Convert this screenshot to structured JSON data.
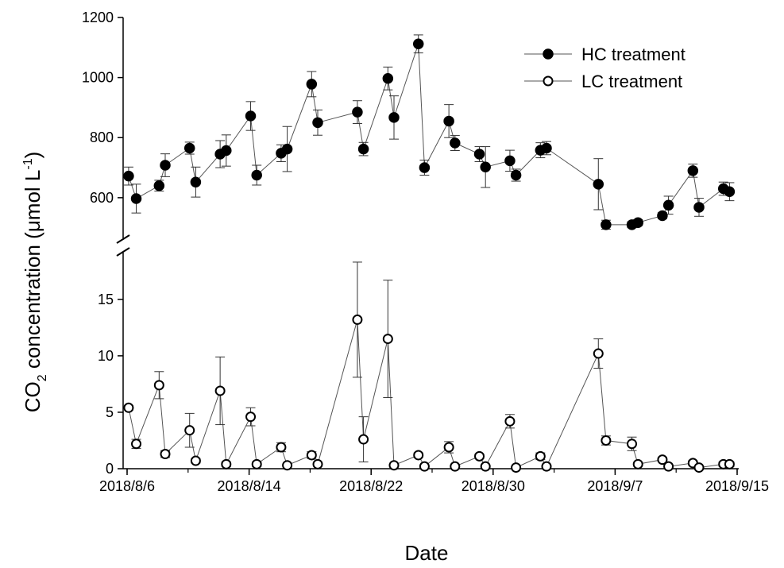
{
  "chart_data": {
    "type": "scatter",
    "xlabel": "Date",
    "ylabel_main": "CO",
    "ylabel_sub": "2",
    "ylabel_rest": " concentration (μmol L",
    "ylabel_sup": "-1",
    "ylabel_close": ")",
    "x_ticks": [
      {
        "label": "2018/8/6",
        "day": 6
      },
      {
        "label": "2018/8/14",
        "day": 14
      },
      {
        "label": "2018/8/22",
        "day": 22
      },
      {
        "label": "2018/8/30",
        "day": 30
      },
      {
        "label": "2018/9/7",
        "day": 38
      },
      {
        "label": "2018/9/15",
        "day": 46
      }
    ],
    "upper_panel": {
      "ylim": [
        470,
        1200
      ],
      "yticks": [
        "600",
        "800",
        "1000",
        "1200"
      ]
    },
    "lower_panel": {
      "ylim": [
        0,
        19
      ],
      "yticks": [
        "0",
        "5",
        "10",
        "15"
      ]
    },
    "series": [
      {
        "name": "HC treatment",
        "marker": "filled",
        "points": [
          {
            "x": 6.1,
            "y": 672,
            "err": 30
          },
          {
            "x": 6.6,
            "y": 597,
            "err": 48
          },
          {
            "x": 8.1,
            "y": 640,
            "err": 18
          },
          {
            "x": 8.5,
            "y": 708,
            "err": 38
          },
          {
            "x": 10.1,
            "y": 765,
            "err": 20
          },
          {
            "x": 10.5,
            "y": 652,
            "err": 50
          },
          {
            "x": 12.1,
            "y": 745,
            "err": 45
          },
          {
            "x": 12.5,
            "y": 757,
            "err": 52
          },
          {
            "x": 14.1,
            "y": 872,
            "err": 48
          },
          {
            "x": 14.5,
            "y": 675,
            "err": 33
          },
          {
            "x": 16.1,
            "y": 748,
            "err": 28
          },
          {
            "x": 16.5,
            "y": 762,
            "err": 75
          },
          {
            "x": 18.1,
            "y": 978,
            "err": 42
          },
          {
            "x": 18.5,
            "y": 850,
            "err": 42
          },
          {
            "x": 21.1,
            "y": 885,
            "err": 38
          },
          {
            "x": 21.5,
            "y": 762,
            "err": 22
          },
          {
            "x": 23.1,
            "y": 997,
            "err": 38
          },
          {
            "x": 23.5,
            "y": 867,
            "err": 72
          },
          {
            "x": 25.1,
            "y": 1112,
            "err": 30
          },
          {
            "x": 25.5,
            "y": 700,
            "err": 25
          },
          {
            "x": 27.1,
            "y": 855,
            "err": 55
          },
          {
            "x": 27.5,
            "y": 782,
            "err": 25
          },
          {
            "x": 29.1,
            "y": 745,
            "err": 25
          },
          {
            "x": 29.5,
            "y": 702,
            "err": 68
          },
          {
            "x": 31.1,
            "y": 723,
            "err": 35
          },
          {
            "x": 31.5,
            "y": 675,
            "err": 20
          },
          {
            "x": 33.1,
            "y": 758,
            "err": 25
          },
          {
            "x": 33.5,
            "y": 765,
            "err": 22
          },
          {
            "x": 36.9,
            "y": 645,
            "err": 85
          },
          {
            "x": 37.4,
            "y": 510,
            "err": 15
          },
          {
            "x": 39.1,
            "y": 510,
            "err": 10
          },
          {
            "x": 39.5,
            "y": 517,
            "err": 10
          },
          {
            "x": 41.1,
            "y": 540,
            "err": 10
          },
          {
            "x": 41.5,
            "y": 575,
            "err": 30
          },
          {
            "x": 43.1,
            "y": 690,
            "err": 22
          },
          {
            "x": 43.5,
            "y": 568,
            "err": 30
          },
          {
            "x": 45.1,
            "y": 630,
            "err": 22
          },
          {
            "x": 45.5,
            "y": 620,
            "err": 30
          }
        ]
      },
      {
        "name": "LC treatment",
        "marker": "open",
        "points": [
          {
            "x": 6.1,
            "y": 5.4,
            "err": 0.2
          },
          {
            "x": 6.6,
            "y": 2.2,
            "err": 0.4
          },
          {
            "x": 8.1,
            "y": 7.4,
            "err": 1.2
          },
          {
            "x": 8.5,
            "y": 1.3,
            "err": 0.3
          },
          {
            "x": 10.1,
            "y": 3.4,
            "err": 1.5
          },
          {
            "x": 10.5,
            "y": 0.7,
            "err": 0.2
          },
          {
            "x": 12.1,
            "y": 6.9,
            "err": 3.0
          },
          {
            "x": 12.5,
            "y": 0.4,
            "err": 0.2
          },
          {
            "x": 14.1,
            "y": 4.6,
            "err": 0.8
          },
          {
            "x": 14.5,
            "y": 0.4,
            "err": 0.2
          },
          {
            "x": 16.1,
            "y": 1.9,
            "err": 0.4
          },
          {
            "x": 16.5,
            "y": 0.3,
            "err": 0.1
          },
          {
            "x": 18.1,
            "y": 1.2,
            "err": 0.3
          },
          {
            "x": 18.5,
            "y": 0.4,
            "err": 0.1
          },
          {
            "x": 21.1,
            "y": 13.2,
            "err": 5.1
          },
          {
            "x": 21.5,
            "y": 2.6,
            "err": 2.0
          },
          {
            "x": 23.1,
            "y": 11.5,
            "err": 5.2
          },
          {
            "x": 23.5,
            "y": 0.3,
            "err": 0.1
          },
          {
            "x": 25.1,
            "y": 1.2,
            "err": 0.2
          },
          {
            "x": 25.5,
            "y": 0.2,
            "err": 0.1
          },
          {
            "x": 27.1,
            "y": 1.9,
            "err": 0.5
          },
          {
            "x": 27.5,
            "y": 0.2,
            "err": 0.1
          },
          {
            "x": 29.1,
            "y": 1.1,
            "err": 0.2
          },
          {
            "x": 29.5,
            "y": 0.2,
            "err": 0.1
          },
          {
            "x": 31.1,
            "y": 4.2,
            "err": 0.6
          },
          {
            "x": 31.5,
            "y": 0.1,
            "err": 0.1
          },
          {
            "x": 33.1,
            "y": 1.1,
            "err": 0.3
          },
          {
            "x": 33.5,
            "y": 0.2,
            "err": 0.1
          },
          {
            "x": 36.9,
            "y": 10.2,
            "err": 1.3
          },
          {
            "x": 37.4,
            "y": 2.5,
            "err": 0.4
          },
          {
            "x": 39.1,
            "y": 2.2,
            "err": 0.6
          },
          {
            "x": 39.5,
            "y": 0.4,
            "err": 0.1
          },
          {
            "x": 41.1,
            "y": 0.8,
            "err": 0.2
          },
          {
            "x": 41.5,
            "y": 0.2,
            "err": 0.1
          },
          {
            "x": 43.1,
            "y": 0.5,
            "err": 0.2
          },
          {
            "x": 43.5,
            "y": 0.1,
            "err": 0.1
          },
          {
            "x": 45.1,
            "y": 0.4,
            "err": 0.2
          },
          {
            "x": 45.5,
            "y": 0.4,
            "err": 0.2
          }
        ]
      }
    ]
  }
}
